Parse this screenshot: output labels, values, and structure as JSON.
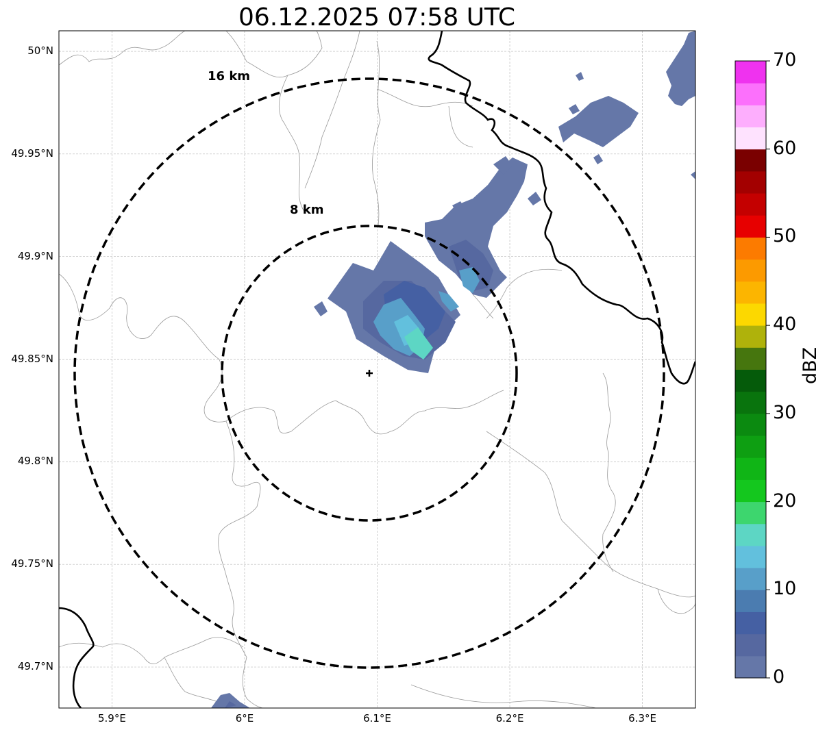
{
  "title": "06.12.2025 07:58 UTC",
  "map": {
    "lon_range": [
      5.86,
      6.34
    ],
    "lat_range": [
      49.68,
      50.01
    ],
    "radar_site": {
      "lon": 6.095,
      "lat": 49.843
    },
    "range_rings": [
      {
        "label": "8 km",
        "radius_km": 8
      },
      {
        "label": "16 km",
        "radius_km": 16
      }
    ],
    "lat_ticks": [
      {
        "value": 50.0,
        "label": "50°N"
      },
      {
        "value": 49.95,
        "label": "49.95°N"
      },
      {
        "value": 49.9,
        "label": "49.9°N"
      },
      {
        "value": 49.85,
        "label": "49.85°N"
      },
      {
        "value": 49.8,
        "label": "49.8°N"
      },
      {
        "value": 49.75,
        "label": "49.75°N"
      },
      {
        "value": 49.7,
        "label": "49.7°N"
      }
    ],
    "lon_ticks": [
      {
        "value": 5.9,
        "label": "5.9°E"
      },
      {
        "value": 6.0,
        "label": "6°E"
      },
      {
        "value": 6.1,
        "label": "6.1°E"
      },
      {
        "value": 6.2,
        "label": "6.2°E"
      },
      {
        "value": 6.3,
        "label": "6.3°E"
      }
    ],
    "gridlines": true,
    "ring_style": "dashed black",
    "border_color": "#000000",
    "boundary_color": "#999999"
  },
  "colorbar": {
    "label": "dBZ",
    "min": 0,
    "max": 70,
    "ticks": [
      "0",
      "10",
      "20",
      "30",
      "40",
      "50",
      "60",
      "70"
    ],
    "tick_values": [
      0,
      10,
      20,
      30,
      40,
      50,
      60,
      70
    ],
    "colors": [
      "#6577a8",
      "#5668a0",
      "#4560a3",
      "#4b7cb0",
      "#589fc9",
      "#62c0dd",
      "#5dd6c4",
      "#3dd66e",
      "#14c71e",
      "#10b516",
      "#0e9f12",
      "#0b8a10",
      "#09740d",
      "#055b0a",
      "#46760e",
      "#afb20b",
      "#fcd800",
      "#fcb500",
      "#fc9a00",
      "#fc7b00",
      "#e70000",
      "#c40000",
      "#a30000",
      "#7a0000",
      "#fee2fe",
      "#fdaefd",
      "#fc70fc",
      "#ef32ef"
    ]
  }
}
